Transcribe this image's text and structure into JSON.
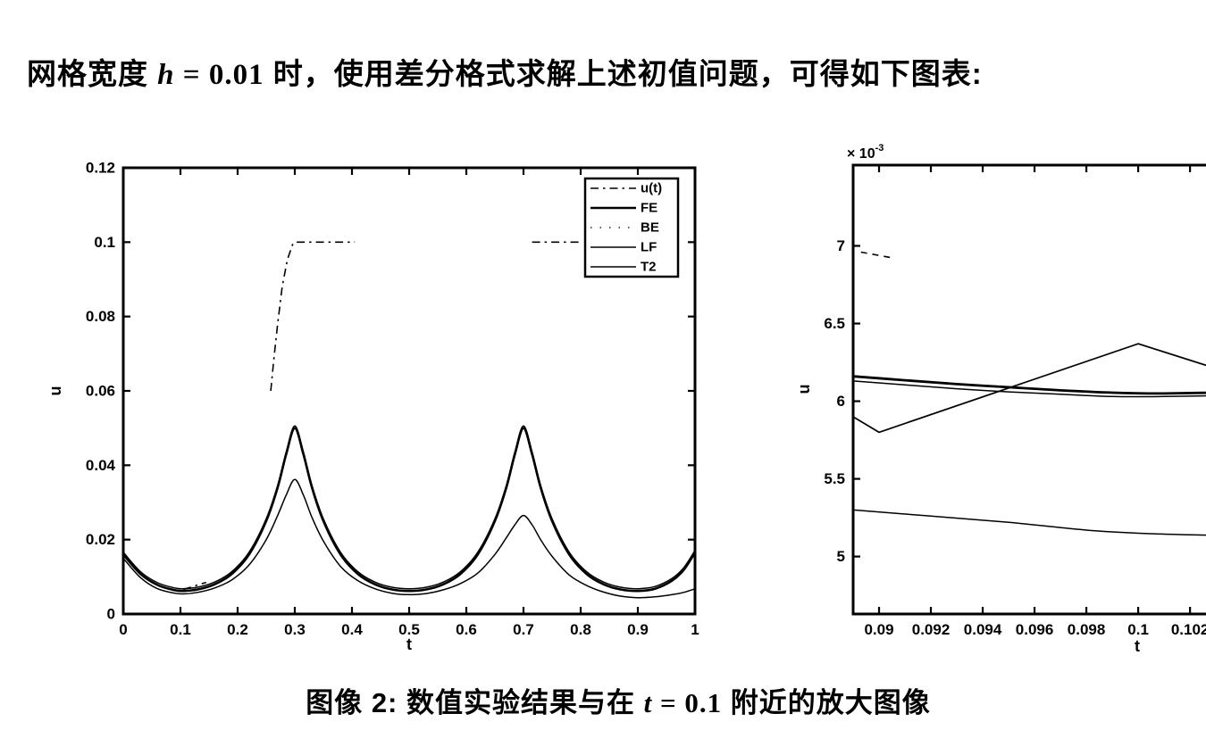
{
  "document": {
    "heading": {
      "before": "网格宽度 ",
      "math_var": "h",
      "math_rest": " = 0.01",
      "after": " 时，使用差分格式求解上述初值问题，可得如下图表:"
    },
    "caption": {
      "figure_label": "图像 2:",
      "before": " 数值实验结果与在 ",
      "math_var": "t",
      "math_rest": " = 0.1",
      "after": " 附近的放大图像"
    }
  },
  "chart_data": [
    {
      "id": "overview",
      "type": "line",
      "title": "",
      "xlabel": "t",
      "ylabel": "u",
      "xlim": [
        0,
        1
      ],
      "ylim": [
        0,
        0.12
      ],
      "xticks": [
        "0",
        "0.1",
        "0.2",
        "0.3",
        "0.4",
        "0.5",
        "0.6",
        "0.7",
        "0.8",
        "0.9",
        "1"
      ],
      "yticks": [
        "0",
        "0.02",
        "0.04",
        "0.06",
        "0.08",
        "0.1",
        "0.12"
      ],
      "grid": false,
      "legend": true,
      "legend_position": "top-right",
      "series": [
        {
          "name": "u(t)",
          "line": "dashdot",
          "width": 1.6,
          "smooth": false,
          "segments": [
            [
              [
                0.105,
                0.0066
              ],
              [
                0.145,
                0.0085
              ]
            ],
            [
              [
                0.258,
                0.06
              ],
              [
                0.263,
                0.068
              ],
              [
                0.27,
                0.078
              ],
              [
                0.278,
                0.088
              ],
              [
                0.287,
                0.0953
              ],
              [
                0.296,
                0.0993
              ],
              [
                0.3,
                0.1
              ],
              [
                0.405,
                0.1
              ]
            ],
            [
              [
                0.715,
                0.1
              ],
              [
                0.8,
                0.1
              ]
            ]
          ]
        },
        {
          "name": "FE",
          "line": "solid",
          "width": 2.6,
          "smooth": true,
          "segments": [
            [
              [
                0,
                0.016
              ],
              [
                0.03,
                0.0108
              ],
              [
                0.06,
                0.0078
              ],
              [
                0.09,
                0.0064
              ],
              [
                0.105,
                0.0062
              ],
              [
                0.13,
                0.0066
              ],
              [
                0.16,
                0.008
              ],
              [
                0.19,
                0.0108
              ],
              [
                0.22,
                0.016
              ],
              [
                0.25,
                0.025
              ],
              [
                0.27,
                0.034
              ],
              [
                0.285,
                0.043
              ],
              [
                0.3,
                0.05
              ],
              [
                0.315,
                0.043
              ],
              [
                0.33,
                0.034
              ],
              [
                0.35,
                0.025
              ],
              [
                0.38,
                0.016
              ],
              [
                0.41,
                0.0108
              ],
              [
                0.44,
                0.008
              ],
              [
                0.47,
                0.0066
              ],
              [
                0.5,
                0.0062
              ],
              [
                0.53,
                0.0066
              ],
              [
                0.56,
                0.008
              ],
              [
                0.59,
                0.0108
              ],
              [
                0.62,
                0.016
              ],
              [
                0.65,
                0.025
              ],
              [
                0.67,
                0.034
              ],
              [
                0.685,
                0.043
              ],
              [
                0.7,
                0.05
              ],
              [
                0.715,
                0.043
              ],
              [
                0.73,
                0.034
              ],
              [
                0.75,
                0.025
              ],
              [
                0.78,
                0.016
              ],
              [
                0.81,
                0.0108
              ],
              [
                0.84,
                0.008
              ],
              [
                0.87,
                0.0066
              ],
              [
                0.9,
                0.0062
              ],
              [
                0.93,
                0.0068
              ],
              [
                0.96,
                0.009
              ],
              [
                0.98,
                0.0118
              ],
              [
                1.0,
                0.0165
              ]
            ]
          ]
        },
        {
          "name": "BE",
          "line": "sparse",
          "width": 1.2,
          "smooth": true,
          "segments": [
            [
              [
                0,
                0.016
              ],
              [
                0.03,
                0.0108
              ],
              [
                0.06,
                0.0078
              ],
              [
                0.09,
                0.0064
              ],
              [
                0.105,
                0.0062
              ],
              [
                0.13,
                0.0066
              ],
              [
                0.16,
                0.008
              ],
              [
                0.19,
                0.0108
              ],
              [
                0.22,
                0.016
              ],
              [
                0.25,
                0.025
              ],
              [
                0.27,
                0.034
              ],
              [
                0.285,
                0.043
              ],
              [
                0.3,
                0.05
              ],
              [
                0.315,
                0.043
              ],
              [
                0.33,
                0.034
              ],
              [
                0.35,
                0.025
              ],
              [
                0.38,
                0.016
              ],
              [
                0.41,
                0.0108
              ],
              [
                0.44,
                0.008
              ],
              [
                0.47,
                0.0066
              ],
              [
                0.5,
                0.0062
              ],
              [
                0.53,
                0.0066
              ],
              [
                0.56,
                0.008
              ],
              [
                0.59,
                0.0108
              ],
              [
                0.62,
                0.016
              ],
              [
                0.65,
                0.025
              ],
              [
                0.67,
                0.034
              ],
              [
                0.685,
                0.043
              ],
              [
                0.7,
                0.05
              ],
              [
                0.715,
                0.043
              ],
              [
                0.73,
                0.034
              ],
              [
                0.75,
                0.025
              ],
              [
                0.78,
                0.016
              ],
              [
                0.81,
                0.0108
              ],
              [
                0.84,
                0.008
              ],
              [
                0.87,
                0.0066
              ],
              [
                0.9,
                0.0062
              ],
              [
                0.93,
                0.0068
              ],
              [
                0.96,
                0.009
              ],
              [
                0.98,
                0.0118
              ],
              [
                1.0,
                0.0165
              ]
            ]
          ]
        },
        {
          "name": "LF",
          "line": "solid",
          "width": 1.5,
          "smooth": true,
          "segments": [
            [
              [
                0,
                0.0166
              ],
              [
                0.03,
                0.0114
              ],
              [
                0.06,
                0.0084
              ],
              [
                0.09,
                0.007
              ],
              [
                0.105,
                0.0068
              ],
              [
                0.13,
                0.0072
              ],
              [
                0.16,
                0.0086
              ],
              [
                0.19,
                0.0114
              ],
              [
                0.22,
                0.0166
              ],
              [
                0.25,
                0.0256
              ],
              [
                0.27,
                0.0346
              ],
              [
                0.285,
                0.0436
              ],
              [
                0.3,
                0.0506
              ],
              [
                0.315,
                0.0436
              ],
              [
                0.33,
                0.0346
              ],
              [
                0.35,
                0.0256
              ],
              [
                0.38,
                0.0166
              ],
              [
                0.41,
                0.0114
              ],
              [
                0.44,
                0.0086
              ],
              [
                0.47,
                0.0072
              ],
              [
                0.5,
                0.0068
              ],
              [
                0.53,
                0.0072
              ],
              [
                0.56,
                0.0086
              ],
              [
                0.59,
                0.0114
              ],
              [
                0.62,
                0.0166
              ],
              [
                0.65,
                0.0256
              ],
              [
                0.67,
                0.0346
              ],
              [
                0.685,
                0.0436
              ],
              [
                0.7,
                0.0506
              ],
              [
                0.715,
                0.0436
              ],
              [
                0.73,
                0.0346
              ],
              [
                0.75,
                0.0256
              ],
              [
                0.78,
                0.0166
              ],
              [
                0.81,
                0.0114
              ],
              [
                0.84,
                0.0086
              ],
              [
                0.87,
                0.0072
              ],
              [
                0.9,
                0.0068
              ],
              [
                0.93,
                0.0074
              ],
              [
                0.96,
                0.0096
              ],
              [
                0.98,
                0.0124
              ],
              [
                1.0,
                0.0171
              ]
            ]
          ]
        },
        {
          "name": "T2",
          "line": "solid",
          "width": 1.5,
          "smooth": true,
          "segments": [
            [
              [
                0,
                0.015
              ],
              [
                0.03,
                0.0098
              ],
              [
                0.06,
                0.0068
              ],
              [
                0.09,
                0.0056
              ],
              [
                0.105,
                0.0054
              ],
              [
                0.13,
                0.0058
              ],
              [
                0.16,
                0.007
              ],
              [
                0.19,
                0.0092
              ],
              [
                0.22,
                0.0132
              ],
              [
                0.25,
                0.02
              ],
              [
                0.27,
                0.0265
              ],
              [
                0.285,
                0.032
              ],
              [
                0.3,
                0.0362
              ],
              [
                0.315,
                0.032
              ],
              [
                0.33,
                0.026
              ],
              [
                0.35,
                0.0196
              ],
              [
                0.38,
                0.0128
              ],
              [
                0.41,
                0.009
              ],
              [
                0.44,
                0.0068
              ],
              [
                0.47,
                0.0056
              ],
              [
                0.5,
                0.0052
              ],
              [
                0.53,
                0.0055
              ],
              [
                0.56,
                0.0065
              ],
              [
                0.59,
                0.0082
              ],
              [
                0.62,
                0.011
              ],
              [
                0.65,
                0.016
              ],
              [
                0.67,
                0.0205
              ],
              [
                0.685,
                0.024
              ],
              [
                0.7,
                0.0265
              ],
              [
                0.715,
                0.024
              ],
              [
                0.73,
                0.02
              ],
              [
                0.75,
                0.0155
              ],
              [
                0.78,
                0.0105
              ],
              [
                0.81,
                0.0077
              ],
              [
                0.84,
                0.0059
              ],
              [
                0.87,
                0.0048
              ],
              [
                0.9,
                0.0044
              ],
              [
                0.93,
                0.0046
              ],
              [
                0.96,
                0.0052
              ],
              [
                0.98,
                0.0058
              ],
              [
                1.0,
                0.0068
              ]
            ]
          ]
        }
      ]
    },
    {
      "id": "zoom",
      "type": "line",
      "title": "",
      "xlabel": "t",
      "ylabel": "u",
      "y_exponent": {
        "base": "× 10",
        "sup": "-3"
      },
      "y_unit": "1e-3",
      "xlim": [
        0.089,
        0.10434
      ],
      "ylim": [
        4.63,
        7.52
      ],
      "xticks": [
        "0.09",
        "0.092",
        "0.094",
        "0.096",
        "0.098",
        "0.1",
        "0.102"
      ],
      "yticks": [
        "5",
        "5.5",
        "6",
        "6.5",
        "7"
      ],
      "grid": false,
      "legend": false,
      "clipped_right": true,
      "series": [
        {
          "name": "u(t)",
          "line": "dash",
          "width": 1.6,
          "smooth": false,
          "segments": [
            [
              [
                0.0893,
                6.96
              ],
              [
                0.0906,
                6.92
              ]
            ],
            [
              [
                0.0932,
                7.52
              ],
              [
                0.0968,
                7.52
              ]
            ]
          ]
        },
        {
          "name": "FE",
          "line": "solid",
          "width": 2.8,
          "smooth": true,
          "segments": [
            [
              [
                0.089,
                6.16
              ],
              [
                0.091,
                6.135
              ],
              [
                0.093,
                6.11
              ],
              [
                0.095,
                6.09
              ],
              [
                0.097,
                6.07
              ],
              [
                0.099,
                6.055
              ],
              [
                0.101,
                6.05
              ],
              [
                0.10434,
                6.06
              ]
            ]
          ]
        },
        {
          "name": "BE",
          "line": "solid",
          "width": 1.5,
          "smooth": true,
          "segments": [
            [
              [
                0.089,
                6.13
              ],
              [
                0.091,
                6.105
              ],
              [
                0.093,
                6.08
              ],
              [
                0.095,
                6.06
              ],
              [
                0.097,
                6.045
              ],
              [
                0.099,
                6.03
              ],
              [
                0.101,
                6.03
              ],
              [
                0.10434,
                6.04
              ]
            ]
          ]
        },
        {
          "name": "LF",
          "line": "solid",
          "width": 1.7,
          "smooth": false,
          "segments": [
            [
              [
                0.089,
                5.9
              ],
              [
                0.09,
                5.8
              ],
              [
                0.1,
                6.37
              ],
              [
                0.10434,
                6.14
              ]
            ]
          ]
        },
        {
          "name": "T2",
          "line": "solid",
          "width": 1.5,
          "smooth": true,
          "segments": [
            [
              [
                0.089,
                5.3
              ],
              [
                0.092,
                5.26
              ],
              [
                0.095,
                5.22
              ],
              [
                0.098,
                5.17
              ],
              [
                0.1,
                5.15
              ],
              [
                0.102,
                5.14
              ],
              [
                0.10434,
                5.13
              ]
            ]
          ]
        }
      ]
    }
  ]
}
